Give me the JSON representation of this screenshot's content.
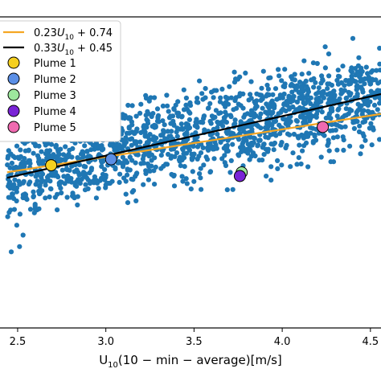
{
  "chart_data": {
    "type": "scatter",
    "title": "",
    "xlabel": "U",
    "xlabel_sub": "10",
    "xlabel_rest": "(10 − min − average)[m/s]",
    "ylabel": "",
    "xlim": [
      2.4,
      4.56
    ],
    "ylim": [
      0.0,
      2.6
    ],
    "x_ticks": [
      2.5,
      3.0,
      3.5,
      4.0,
      4.5
    ],
    "x_tick_labels": [
      "2.5",
      "3.0",
      "3.5",
      "4.0",
      "4.5"
    ],
    "grid": false,
    "legend_position": "top-left",
    "scatter_color": "#1f77b4",
    "scatter_count": 1500,
    "scatter_model": {
      "slope": 0.33,
      "intercept": 0.45,
      "spread": 0.18
    },
    "fit_lines": [
      {
        "label_coef": "0.23",
        "label_var": "U",
        "label_sub": "10",
        "label_rest": " + 0.74",
        "slope": 0.23,
        "intercept": 0.74,
        "color": "#f5a623"
      },
      {
        "label_coef": "0.33",
        "label_var": "U",
        "label_sub": "10",
        "label_rest": " + 0.45",
        "slope": 0.33,
        "intercept": 0.45,
        "color": "#000000"
      }
    ],
    "plumes": [
      {
        "name": "Plume 1",
        "x": 2.69,
        "y": 1.36,
        "color": "#f5d020"
      },
      {
        "name": "Plume 2",
        "x": 3.03,
        "y": 1.41,
        "color": "#5b8fe6"
      },
      {
        "name": "Plume 3",
        "x": 3.77,
        "y": 1.3,
        "color": "#9de89d"
      },
      {
        "name": "Plume 4",
        "x": 3.76,
        "y": 1.27,
        "color": "#7a24d6"
      },
      {
        "name": "Plume 5",
        "x": 4.23,
        "y": 1.68,
        "color": "#f06ab0"
      }
    ]
  }
}
